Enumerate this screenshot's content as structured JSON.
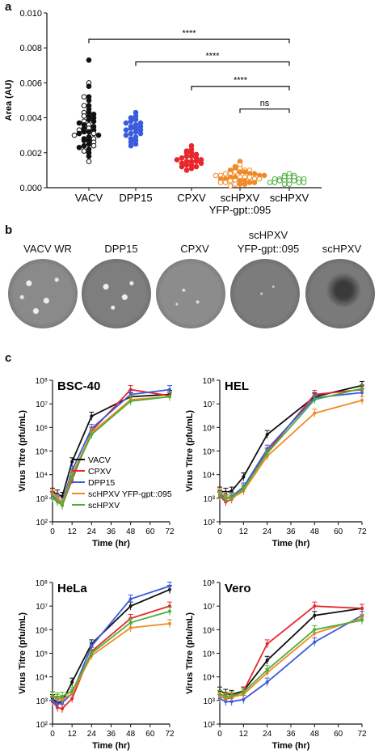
{
  "panels": {
    "a": {
      "letter": "a"
    },
    "b": {
      "letter": "b",
      "labels": [
        "VACV WR",
        "DPP15",
        "CPXV",
        "scHPXV",
        "YFP-gpt::095",
        "scHPXV"
      ]
    },
    "c": {
      "letter": "c"
    }
  },
  "colors": {
    "VACV": "#111111",
    "CPXV": "#e8262b",
    "DPP15": "#3a5bdc",
    "scHPXV YFP-gpt::095": "#f08a24",
    "scHPXV": "#4caf3a"
  },
  "chart_data": [
    {
      "type": "scatter",
      "panel": "a",
      "ylabel": "Area (AU)",
      "ylim": [
        0,
        0.01
      ],
      "y_ticks": [
        "0.000",
        "0.002",
        "0.004",
        "0.006",
        "0.008",
        "0.010"
      ],
      "categories": [
        "VACV",
        "DPP15",
        "CPXV",
        "scHPXV",
        "scHPXV"
      ],
      "category_sublabel": "YFP-gpt::095",
      "series": [
        {
          "name": "VACV",
          "marker": "mixed filled/open",
          "values": [
            0.0073,
            0.006,
            0.0058,
            0.0052,
            0.0052,
            0.005,
            0.0047,
            0.0047,
            0.0045,
            0.0043,
            0.0043,
            0.0042,
            0.0041,
            0.0041,
            0.004,
            0.0039,
            0.0038,
            0.0038,
            0.0037,
            0.0036,
            0.0036,
            0.0035,
            0.0034,
            0.0034,
            0.0033,
            0.0033,
            0.0032,
            0.0032,
            0.0031,
            0.0031,
            0.003,
            0.003,
            0.0029,
            0.0028,
            0.0028,
            0.0027,
            0.0027,
            0.0026,
            0.0025,
            0.0024,
            0.0024,
            0.0023,
            0.0022,
            0.0021,
            0.002,
            0.0018,
            0.0015
          ]
        },
        {
          "name": "DPP15",
          "values": [
            0.0043,
            0.0041,
            0.004,
            0.0039,
            0.0038,
            0.0037,
            0.0037,
            0.0036,
            0.0035,
            0.0035,
            0.0034,
            0.0034,
            0.0033,
            0.0033,
            0.0032,
            0.0031,
            0.0031,
            0.003,
            0.0029,
            0.0028,
            0.0027,
            0.0026,
            0.0025,
            0.0024
          ]
        },
        {
          "name": "CPXV",
          "values": [
            0.0024,
            0.0022,
            0.0021,
            0.002,
            0.002,
            0.0019,
            0.0018,
            0.0018,
            0.0017,
            0.0017,
            0.0016,
            0.0016,
            0.0015,
            0.0015,
            0.0015,
            0.0014,
            0.0014,
            0.0013,
            0.0013,
            0.0012,
            0.0012,
            0.0011,
            0.001
          ]
        },
        {
          "name": "scHPXV YFP-gpt::095",
          "values": [
            0.0015,
            0.0013,
            0.0012,
            0.0011,
            0.0011,
            0.001,
            0.001,
            0.001,
            0.0009,
            0.0009,
            0.0009,
            0.0008,
            0.0008,
            0.0008,
            0.0008,
            0.0007,
            0.0007,
            0.0007,
            0.0007,
            0.0006,
            0.0006,
            0.0006,
            0.0006,
            0.0006,
            0.0005,
            0.0005,
            0.0005,
            0.0005,
            0.0004,
            0.0004,
            0.0004,
            0.0004,
            0.0003,
            0.0003,
            0.0003,
            0.0003,
            0.0002,
            0.0002,
            0.0002,
            0.0001
          ]
        },
        {
          "name": "scHPXV",
          "values": [
            0.0008,
            0.0007,
            0.0007,
            0.0006,
            0.0006,
            0.0006,
            0.0005,
            0.0005,
            0.0005,
            0.0005,
            0.0004,
            0.0004,
            0.0004,
            0.0004,
            0.0003,
            0.0003,
            0.0003,
            0.0003,
            0.0002,
            0.0002
          ]
        }
      ],
      "annotations": [
        {
          "from": 0,
          "to": 4,
          "y": 0.0085,
          "text": "****"
        },
        {
          "from": 1,
          "to": 4,
          "y": 0.0072,
          "text": "****"
        },
        {
          "from": 2,
          "to": 4,
          "y": 0.0058,
          "text": "****"
        },
        {
          "from": 3,
          "to": 4,
          "y": 0.0045,
          "text": "ns"
        }
      ]
    },
    {
      "type": "line",
      "panel": "c",
      "title": "BSC-40",
      "xlabel": "Time (hr)",
      "ylabel": "Virus Titre (pfu/mL)",
      "x": [
        0,
        3,
        6,
        12,
        24,
        48,
        72
      ],
      "xlim": [
        0,
        72
      ],
      "x_ticks": [
        0,
        12,
        24,
        36,
        48,
        60,
        72
      ],
      "y_scale": "log",
      "ylim": [
        100,
        100000000
      ],
      "legend": "top-left",
      "series": [
        {
          "name": "VACV",
          "values": [
            1800,
            1500,
            1200,
            35000,
            3000000,
            20000000,
            25000000
          ]
        },
        {
          "name": "CPXV",
          "values": [
            1300,
            800,
            500,
            6000,
            700000,
            40000000,
            22000000
          ]
        },
        {
          "name": "DPP15",
          "values": [
            1200,
            900,
            700,
            15000,
            900000,
            25000000,
            40000000
          ]
        },
        {
          "name": "scHPXV YFP-gpt::095",
          "values": [
            1500,
            1000,
            600,
            10000,
            600000,
            15000000,
            20000000
          ]
        },
        {
          "name": "scHPXV",
          "values": [
            1000,
            700,
            500,
            8000,
            500000,
            13000000,
            20000000
          ]
        }
      ]
    },
    {
      "type": "line",
      "panel": "c",
      "title": "HEL",
      "xlabel": "Time (hr)",
      "ylabel": "Virus Titre (pfu/mL)",
      "x": [
        0,
        3,
        6,
        12,
        24,
        48,
        72
      ],
      "xlim": [
        0,
        72
      ],
      "x_ticks": [
        0,
        12,
        24,
        36,
        48,
        60,
        72
      ],
      "y_scale": "log",
      "ylim": [
        100,
        100000000
      ],
      "series": [
        {
          "name": "VACV",
          "values": [
            2000,
            1800,
            2000,
            8000,
            500000,
            20000000,
            60000000
          ]
        },
        {
          "name": "CPXV",
          "values": [
            1200,
            700,
            900,
            2500,
            90000,
            25000000,
            40000000
          ]
        },
        {
          "name": "DPP15",
          "values": [
            1500,
            1000,
            1200,
            3000,
            120000,
            18000000,
            30000000
          ]
        },
        {
          "name": "scHPXV YFP-gpt::095",
          "values": [
            1800,
            1200,
            1000,
            2000,
            60000,
            4000000,
            14000000
          ]
        },
        {
          "name": "scHPXV",
          "values": [
            1300,
            900,
            1100,
            2500,
            80000,
            15000000,
            45000000
          ]
        }
      ]
    },
    {
      "type": "line",
      "panel": "c",
      "title": "HeLa",
      "xlabel": "Time (hr)",
      "ylabel": "Virus Titre (pfu/mL)",
      "x": [
        0,
        3,
        6,
        12,
        24,
        48,
        72
      ],
      "xlim": [
        0,
        72
      ],
      "x_ticks": [
        0,
        12,
        24,
        36,
        48,
        60,
        72
      ],
      "y_scale": "log",
      "ylim": [
        100,
        100000000
      ],
      "series": [
        {
          "name": "VACV",
          "values": [
            1200,
            800,
            900,
            6000,
            250000,
            10000000,
            50000000
          ]
        },
        {
          "name": "CPXV",
          "values": [
            900,
            500,
            450,
            1200,
            120000,
            3000000,
            10000000
          ]
        },
        {
          "name": "DPP15",
          "values": [
            1000,
            700,
            800,
            2000,
            200000,
            20000000,
            70000000
          ]
        },
        {
          "name": "scHPXV YFP-gpt::095",
          "values": [
            1500,
            1200,
            1100,
            2000,
            80000,
            1200000,
            1800000
          ]
        },
        {
          "name": "scHPXV",
          "values": [
            1600,
            1400,
            1500,
            2500,
            100000,
            2000000,
            6000000
          ]
        }
      ]
    },
    {
      "type": "line",
      "panel": "c",
      "title": "Vero",
      "xlabel": "Time (hr)",
      "ylabel": "Virus Titre (pfu/mL)",
      "x": [
        0,
        3,
        6,
        12,
        24,
        48,
        72
      ],
      "xlim": [
        0,
        72
      ],
      "x_ticks": [
        0,
        12,
        24,
        36,
        48,
        60,
        72
      ],
      "y_scale": "log",
      "ylim": [
        100,
        100000000
      ],
      "series": [
        {
          "name": "VACV",
          "values": [
            2500,
            2000,
            1800,
            2500,
            50000,
            4000000,
            8000000
          ]
        },
        {
          "name": "CPXV",
          "values": [
            1500,
            1200,
            1300,
            2500,
            250000,
            10000000,
            8000000
          ]
        },
        {
          "name": "DPP15",
          "values": [
            1200,
            900,
            900,
            1100,
            6000,
            300000,
            4000000
          ]
        },
        {
          "name": "scHPXV YFP-gpt::095",
          "values": [
            1500,
            1300,
            1400,
            1800,
            15000,
            700000,
            3000000
          ]
        },
        {
          "name": "scHPXV",
          "values": [
            1800,
            1500,
            1600,
            2200,
            20000,
            1000000,
            2500000
          ]
        }
      ]
    }
  ]
}
